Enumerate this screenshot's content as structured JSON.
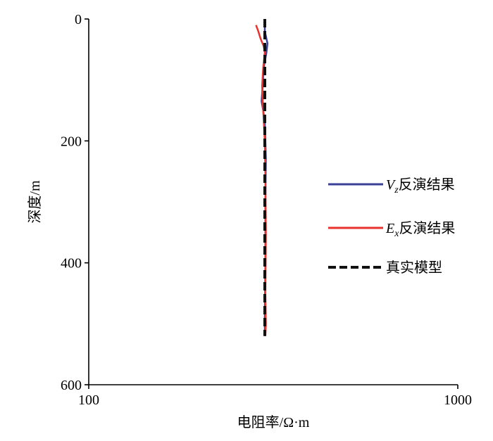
{
  "chart_data": {
    "type": "line",
    "title": "",
    "xlabel": "电阻率/Ω·m",
    "ylabel": "深度/m",
    "x_scale": "log",
    "xlim": [
      100,
      1000
    ],
    "ylim": [
      0,
      600
    ],
    "y_inverted": true,
    "x_ticks": [
      100,
      1000
    ],
    "x_tick_labels": [
      "100",
      "1000"
    ],
    "y_ticks": [
      0,
      200,
      400,
      600
    ],
    "y_tick_labels": [
      "0",
      "200",
      "400",
      "600"
    ],
    "grid": false,
    "legend_position": "right",
    "series": [
      {
        "name": "Vz反演结果",
        "name_main": "V",
        "name_sub": "z",
        "name_suffix": "反演结果",
        "color": "#3a3f97",
        "style": "solid",
        "points": [
          {
            "x": 300,
            "y": 0
          },
          {
            "x": 300,
            "y": 20
          },
          {
            "x": 302,
            "y": 28
          },
          {
            "x": 305,
            "y": 40
          },
          {
            "x": 303,
            "y": 55
          },
          {
            "x": 298,
            "y": 80
          },
          {
            "x": 296,
            "y": 110
          },
          {
            "x": 294,
            "y": 135
          },
          {
            "x": 297,
            "y": 150
          },
          {
            "x": 300,
            "y": 170
          },
          {
            "x": 301,
            "y": 200
          },
          {
            "x": 302,
            "y": 230
          },
          {
            "x": 301,
            "y": 300
          },
          {
            "x": 301,
            "y": 400
          },
          {
            "x": 300,
            "y": 480
          },
          {
            "x": 300,
            "y": 520
          }
        ]
      },
      {
        "name": "Ex反演结果",
        "name_main": "E",
        "name_sub": "x",
        "name_suffix": "反演结果",
        "color": "#e8322b",
        "style": "solid",
        "points": [
          {
            "x": 284,
            "y": 10
          },
          {
            "x": 288,
            "y": 20
          },
          {
            "x": 292,
            "y": 32
          },
          {
            "x": 298,
            "y": 45
          },
          {
            "x": 300,
            "y": 55
          },
          {
            "x": 297,
            "y": 80
          },
          {
            "x": 295,
            "y": 110
          },
          {
            "x": 297,
            "y": 150
          },
          {
            "x": 300,
            "y": 200
          },
          {
            "x": 301,
            "y": 260
          },
          {
            "x": 302,
            "y": 350
          },
          {
            "x": 301,
            "y": 450
          },
          {
            "x": 302,
            "y": 500
          },
          {
            "x": 301,
            "y": 520
          }
        ]
      },
      {
        "name": "真实模型",
        "name_main": "真实模型",
        "name_sub": "",
        "name_suffix": "",
        "color": "#111111",
        "style": "dashed",
        "points": [
          {
            "x": 300,
            "y": 0
          },
          {
            "x": 300,
            "y": 520
          }
        ]
      }
    ]
  }
}
